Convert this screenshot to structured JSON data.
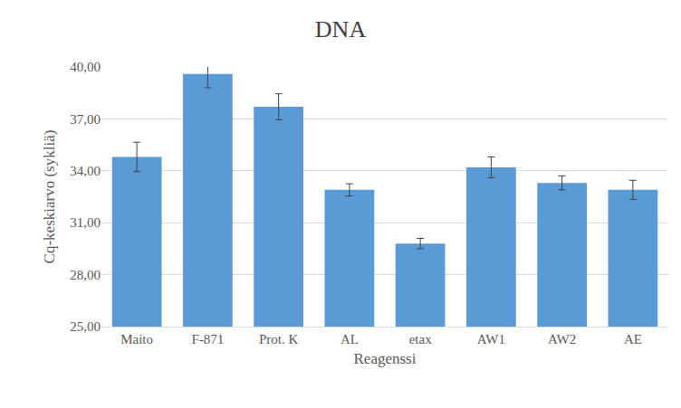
{
  "chart_data": {
    "type": "bar",
    "title": "DNA",
    "x_label": "Reagenssi",
    "y_label": "Cq-keskiarvo (sykliä)",
    "categories": [
      "Maito",
      "F-871",
      "Prot. K",
      "AL",
      "etax",
      "AW1",
      "AW2",
      "AE"
    ],
    "values": [
      34.8,
      39.6,
      37.7,
      32.9,
      29.8,
      34.2,
      33.3,
      32.9
    ],
    "errors": [
      0.85,
      0.8,
      0.75,
      0.35,
      0.3,
      0.6,
      0.4,
      0.55
    ],
    "color": "#5b9bd5",
    "ylim": [
      25,
      40
    ],
    "yticks": [
      {
        "value": 25,
        "label": "25,00"
      },
      {
        "value": 28,
        "label": "28,00"
      },
      {
        "value": 31,
        "label": "31,00"
      },
      {
        "value": 34,
        "label": "34,00"
      },
      {
        "value": 37,
        "label": "37,00"
      },
      {
        "value": 40,
        "label": "40,00"
      }
    ],
    "grid": true
  }
}
